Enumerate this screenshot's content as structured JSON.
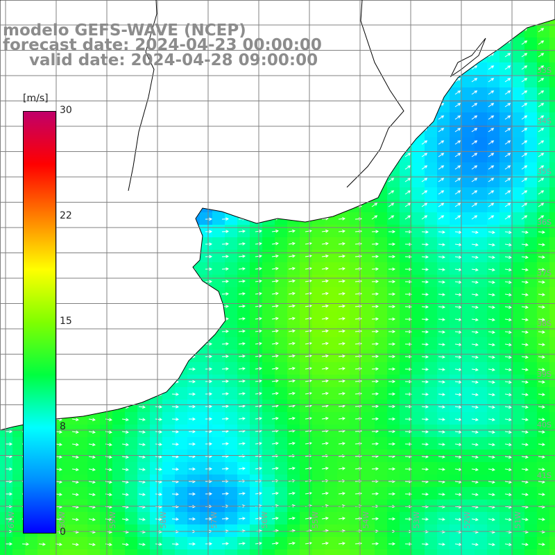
{
  "title": {
    "line1": "modelo GEFS-WAVE (NCEP)",
    "line2": "forecast date: 2024-04-23 00:00:00",
    "line3": "valid date: 2024-04-28 09:00:00"
  },
  "colorbar": {
    "unit": "[m/s]",
    "ticks": [
      "30",
      "22",
      "15",
      "8",
      "0"
    ],
    "tick_values": [
      30,
      22,
      15,
      8,
      0
    ],
    "colors": [
      "#0000ff",
      "#0090ff",
      "#00ffff",
      "#00ff40",
      "#80ff00",
      "#ffff00",
      "#ff8000",
      "#ff0000",
      "#c0006a"
    ]
  },
  "map": {
    "lat_labels": [
      "33S",
      "34S",
      "35S",
      "36S",
      "37S",
      "38S",
      "39S",
      "40S",
      "41S"
    ],
    "lon_labels": [
      "61W",
      "60W",
      "59W",
      "58W",
      "57W",
      "56W",
      "55W",
      "54W",
      "53W",
      "52W",
      "51W"
    ],
    "land_color": "#ffffff",
    "arrow_color": "#ffffff",
    "grid_color": "#808080"
  }
}
